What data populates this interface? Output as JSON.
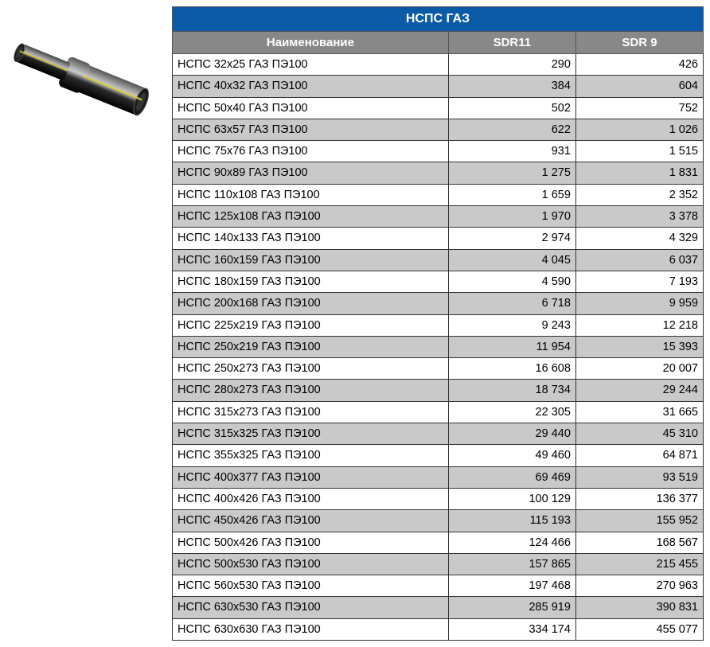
{
  "table": {
    "title": "НСПС ГАЗ",
    "columns": [
      "Наименование",
      "SDR11",
      "SDR 9"
    ],
    "title_bg": "#0b5aa8",
    "title_fg": "#ffffff",
    "header_bg": "#888888",
    "header_fg": "#ffffff",
    "row_bg_odd": "#ffffff",
    "row_bg_even": "#c9c9c9",
    "border_color": "#333333",
    "font_size_body": 14.5,
    "font_size_title": 16,
    "font_size_header": 15,
    "col_widths_pct": [
      52,
      24,
      24
    ],
    "col_align": [
      "left",
      "right",
      "right"
    ],
    "rows": [
      [
        "НСПС 32х25 ГАЗ  ПЭ100",
        "290",
        "426"
      ],
      [
        "НСПС 40х32 ГАЗ  ПЭ100",
        "384",
        "604"
      ],
      [
        "НСПС 50х40 ГАЗ  ПЭ100",
        "502",
        "752"
      ],
      [
        "НСПС 63х57 ГАЗ ПЭ100",
        "622",
        "1 026"
      ],
      [
        "НСПС 75х76 ГАЗ ПЭ100",
        "931",
        "1 515"
      ],
      [
        "НСПС 90х89 ГАЗ ПЭ100",
        "1 275",
        "1 831"
      ],
      [
        "НСПС 110х108 ГАЗ ПЭ100",
        "1 659",
        "2 352"
      ],
      [
        "НСПС 125х108 ГАЗ ПЭ100",
        "1 970",
        "3 378"
      ],
      [
        "НСПС 140х133 ГАЗ ПЭ100",
        "2 974",
        "4 329"
      ],
      [
        "НСПС 160х159 ГАЗ ПЭ100",
        "4 045",
        "6 037"
      ],
      [
        "НСПС 180х159 ГАЗ ПЭ100",
        "4 590",
        "7 193"
      ],
      [
        "НСПС 200х168 ГАЗ ПЭ100",
        "6 718",
        "9 959"
      ],
      [
        "НСПС 225х219 ГАЗ ПЭ100",
        "9 243",
        "12 218"
      ],
      [
        "НСПС 250х219 ГАЗ ПЭ100",
        "11 954",
        "15 393"
      ],
      [
        "НСПС 250х273 ГАЗ ПЭ100",
        "16 608",
        "20 007"
      ],
      [
        "НСПС 280х273 ГАЗ ПЭ100",
        "18 734",
        "29 244"
      ],
      [
        "НСПС 315х273 ГАЗ ПЭ100",
        "22 305",
        "31 665"
      ],
      [
        "НСПС 315х325 ГАЗ ПЭ100",
        "29 440",
        "45 310"
      ],
      [
        "НСПС 355х325 ГАЗ ПЭ100",
        "49 460",
        "64 871"
      ],
      [
        "НСПС 400х377 ГАЗ ПЭ100",
        "69 469",
        "93 519"
      ],
      [
        "НСПС 400х426 ГАЗ ПЭ100",
        "100 129",
        "136 377"
      ],
      [
        "НСПС 450х426 ГАЗ ПЭ100",
        "115 193",
        "155 952"
      ],
      [
        "НСПС 500х426 ГАЗ ПЭ100",
        "124 466",
        "168 567"
      ],
      [
        "НСПС 500х530 ГАЗ ПЭ100",
        "157 865",
        "215 455"
      ],
      [
        "НСПС 560х530 ГАЗ ПЭ100",
        "197 468",
        "270 963"
      ],
      [
        "НСПС 630х530 ГАЗ ПЭ100",
        "285 919",
        "390 831"
      ],
      [
        "НСПС 630х630 ГАЗ ПЭ100",
        "334 174",
        "455 077"
      ]
    ]
  },
  "image": {
    "description": "pipe-transition-fitting",
    "pipe_color": "#1a1a1a",
    "stripe_color": "#d8c838",
    "highlight_color": "#707070"
  }
}
